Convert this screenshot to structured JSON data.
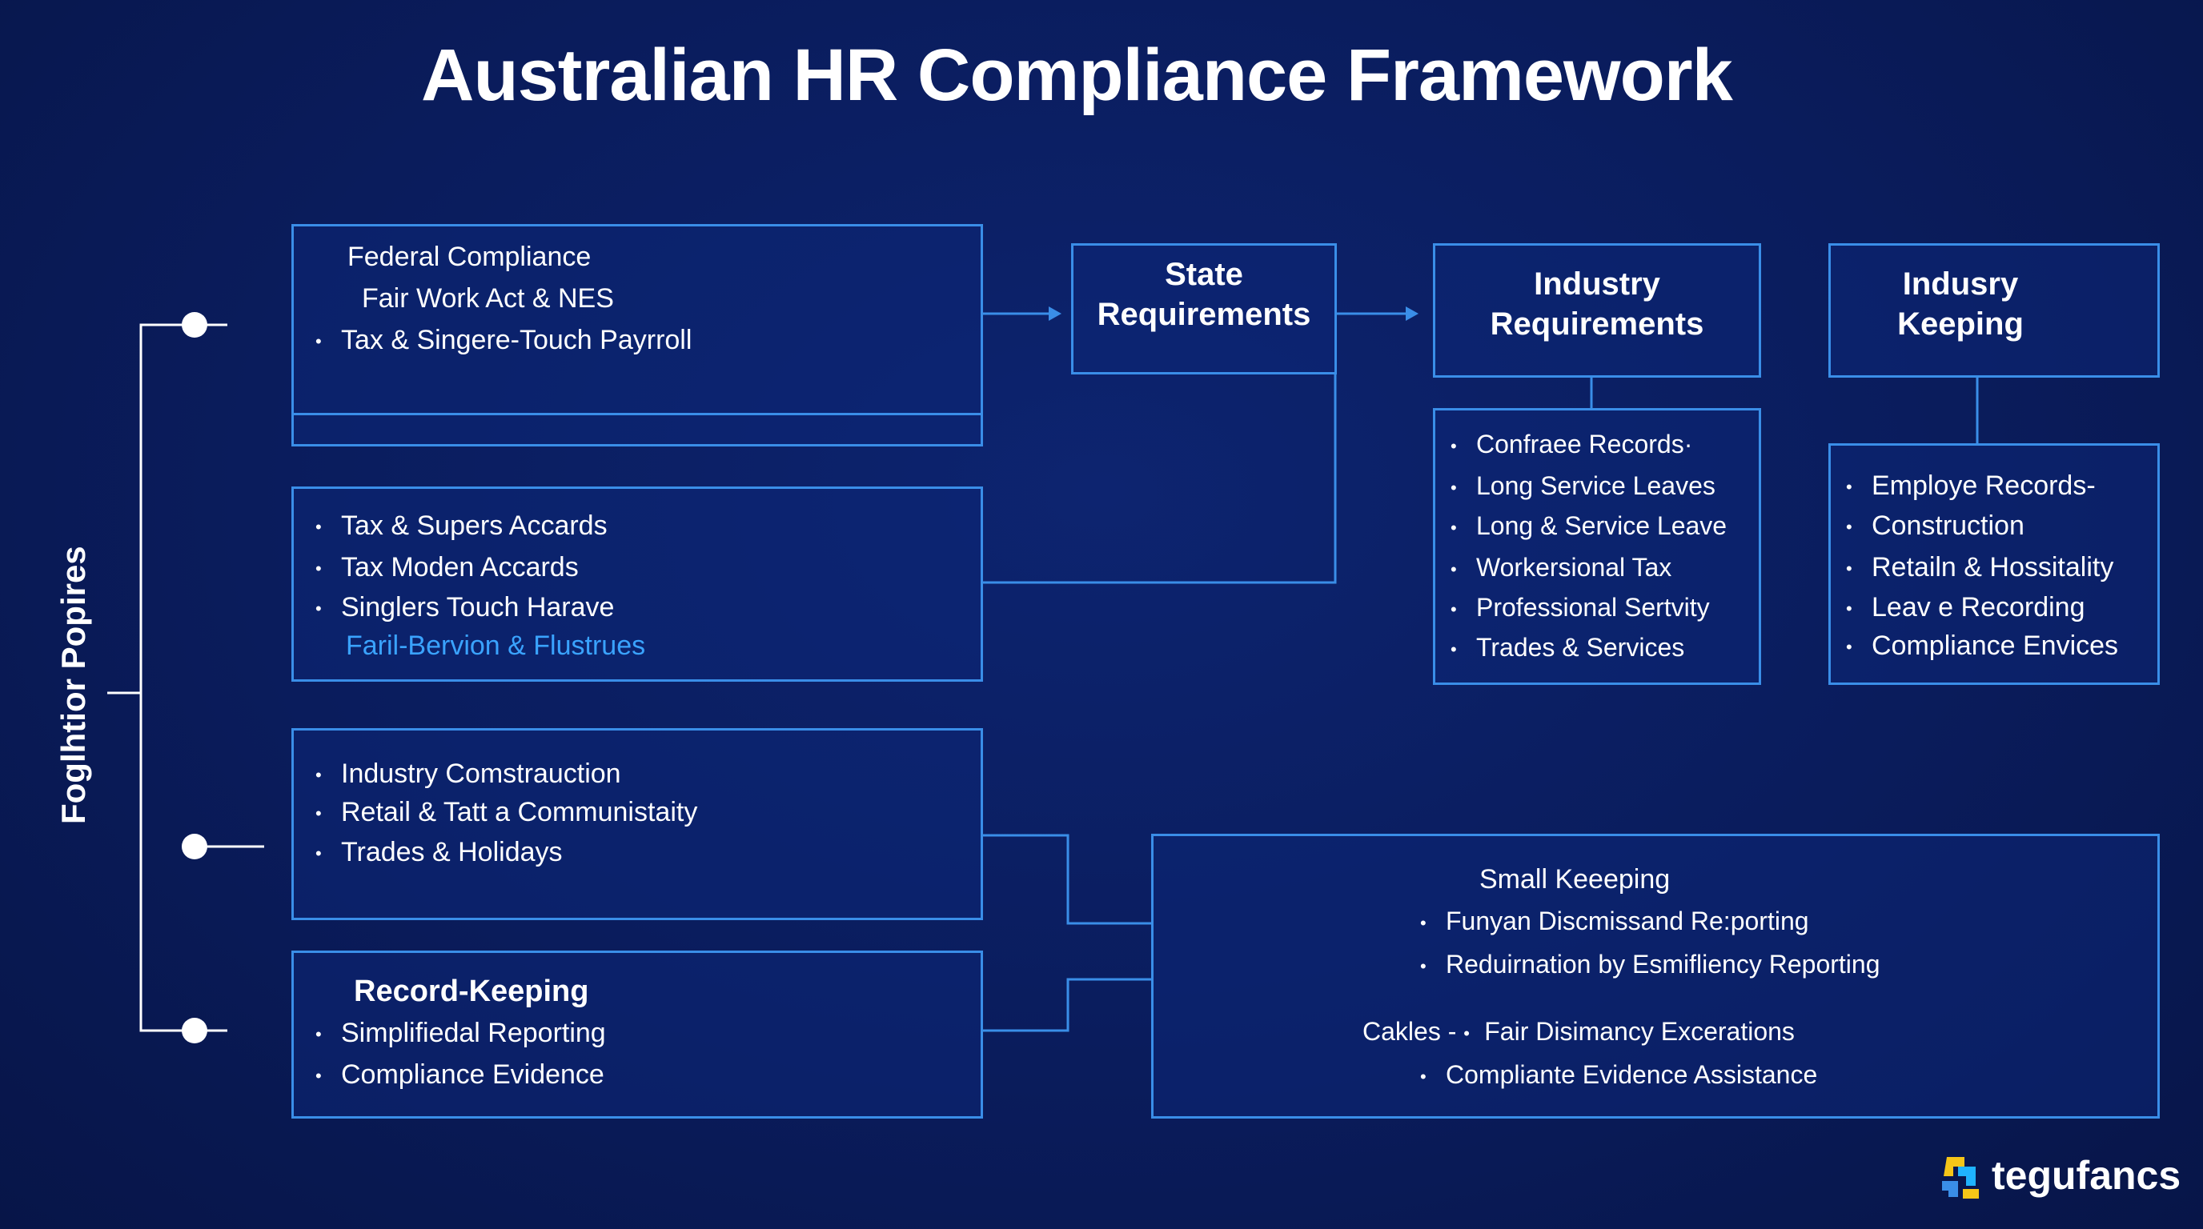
{
  "title": "Australian HR Compliance Framework",
  "side_label": "Foglhtior Popires",
  "federal": {
    "line1": "Federal Compliance",
    "line2": "Fair Work Act & NES",
    "item1": "Tax & Singere-Touch Payrroll"
  },
  "tax_box": {
    "items": [
      "Tax & Supers Accards",
      "Tax Moden Accards",
      "Singlers Touch Harave"
    ],
    "link": "Faril-Bervion & Flustrues"
  },
  "industry_box": {
    "items": [
      "Industry Comstrauction",
      "Retail & Tatt a Communistaity",
      "Trades & Holidays"
    ]
  },
  "record_box": {
    "heading": "Record-Keeping",
    "items": [
      "Simplifiedal Reporting",
      "Compliance Evidence"
    ]
  },
  "state": {
    "line1": "State",
    "line2": "Requirements"
  },
  "industry_req": {
    "line1": "Industry",
    "line2": "Requirements",
    "items": [
      "Confraee Records·",
      "Long Service Leaves",
      "Long & Service Leave",
      "Workersional Tax",
      "Professional Sertvity",
      "Trades & Services"
    ]
  },
  "industry_keep": {
    "line1": "Indusry",
    "line2": "Keeping",
    "items": [
      "Employe Records-",
      "Construction",
      "Retailn & Hossitality",
      "Leav e Recording",
      "Compliance Envices"
    ]
  },
  "small_keep": {
    "heading": "Small Keeeping",
    "item1": "Funyan Discmissand Re:porting",
    "item2": "Reduirnation by Esmifliency Reporting",
    "cakles_prefix": "Cakles  -",
    "cakles_item": "Fair Disimancy Excerations",
    "item3": "Compliante Evidence Assistance"
  },
  "logo": {
    "text": "tegufancs"
  },
  "colors": {
    "background": "#0a1c5c",
    "border": "#3a8ee8",
    "link": "#3aa3ff",
    "text": "#ffffff"
  }
}
